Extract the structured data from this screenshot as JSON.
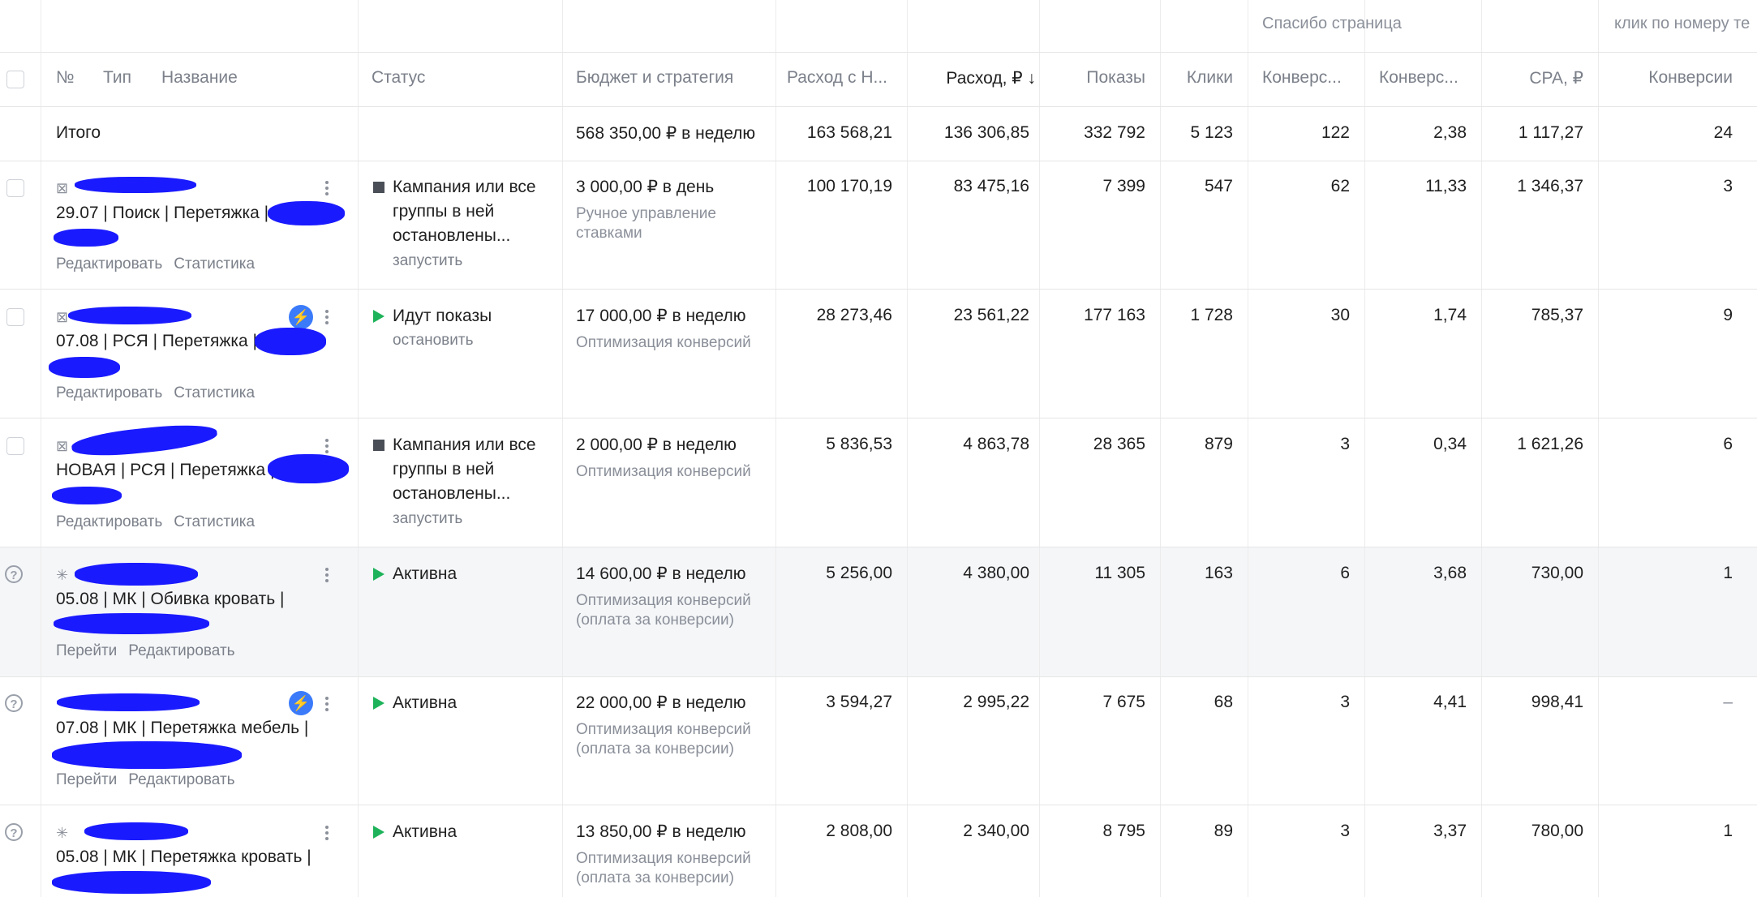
{
  "group_headers": {
    "thanks_page": "Спасибо страница",
    "phone_click": "клик по номеру те"
  },
  "columns": {
    "no": "№",
    "type": "Тип",
    "name": "Название",
    "status": "Статус",
    "budget": "Бюджет и стратегия",
    "spend_vat": "Расход с Н...",
    "spend": "Расход, ₽ ↓",
    "impressions": "Показы",
    "clicks": "Клики",
    "conv1": "Конверс...",
    "conv2": "Конверс...",
    "cpa": "CPA, ₽",
    "conversions": "Конверсии"
  },
  "totals": {
    "label": "Итого",
    "budget": "568 350,00 ₽ в неделю",
    "spend_vat": "163 568,21",
    "spend": "136 306,85",
    "impressions": "332 792",
    "clicks": "5 123",
    "conv1": "122",
    "conv2": "2,38",
    "cpa": "1 117,27",
    "conversions": "24"
  },
  "rows": [
    {
      "name_line": "29.07 | Поиск | Перетяжка |",
      "links": [
        "Редактировать",
        "Статистика"
      ],
      "status": "Кампания или все группы в ней остановлены...",
      "status_link": "запустить",
      "status_icon": "stop-icon",
      "budget": "3 000,00 ₽ в день",
      "strategy": "Ручное управление ставками",
      "spend_vat": "100 170,19",
      "spend": "83 475,16",
      "impressions": "7 399",
      "clicks": "547",
      "conv1": "62",
      "conv2": "11,33",
      "cpa": "1 346,37",
      "conversions": "3"
    },
    {
      "name_line": "07.08 | РСЯ | Перетяжка |",
      "links": [
        "Редактировать",
        "Статистика"
      ],
      "status": "Идут показы",
      "status_link": "остановить",
      "status_icon": "play-icon",
      "budget": "17 000,00 ₽ в неделю",
      "strategy": "Оптимизация конверсий",
      "spend_vat": "28 273,46",
      "spend": "23 561,22",
      "impressions": "177 163",
      "clicks": "1 728",
      "conv1": "30",
      "conv2": "1,74",
      "cpa": "785,37",
      "conversions": "9"
    },
    {
      "name_line": "НОВАЯ | РСЯ | Перетяжка |",
      "links": [
        "Редактировать",
        "Статистика"
      ],
      "status": "Кампания или все группы в ней остановлены...",
      "status_link": "запустить",
      "status_icon": "stop-icon",
      "budget": "2 000,00 ₽ в неделю",
      "strategy": "Оптимизация конверсий",
      "spend_vat": "5 836,53",
      "spend": "4 863,78",
      "impressions": "28 365",
      "clicks": "879",
      "conv1": "3",
      "conv2": "0,34",
      "cpa": "1 621,26",
      "conversions": "6"
    },
    {
      "name_line": "05.08 | МК | Обивка кровать |",
      "links": [
        "Перейти",
        "Редактировать"
      ],
      "status": "Активна",
      "status_link": "",
      "status_icon": "play-icon",
      "budget": "14 600,00 ₽ в неделю",
      "strategy": "Оптимизация конверсий (оплата за конверсии)",
      "spend_vat": "5 256,00",
      "spend": "4 380,00",
      "impressions": "11 305",
      "clicks": "163",
      "conv1": "6",
      "conv2": "3,68",
      "cpa": "730,00",
      "conversions": "1"
    },
    {
      "name_line": "07.08 | МК | Перетяжка мебель |",
      "links": [
        "Перейти",
        "Редактировать"
      ],
      "status": "Активна",
      "status_link": "",
      "status_icon": "play-icon",
      "budget": "22 000,00 ₽ в неделю",
      "strategy": "Оптимизация конверсий (оплата за конверсии)",
      "spend_vat": "3 594,27",
      "spend": "2 995,22",
      "impressions": "7 675",
      "clicks": "68",
      "conv1": "3",
      "conv2": "4,41",
      "cpa": "998,41",
      "conversions": "–"
    },
    {
      "name_line": "05.08 | МК | Перетяжка кровать |",
      "links": [
        "Перейти",
        "Редактировать"
      ],
      "status": "Активна",
      "status_link": "",
      "status_icon": "play-icon",
      "budget": "13 850,00 ₽ в неделю",
      "strategy": "Оптимизация конверсий (оплата за конверсии)",
      "spend_vat": "2 808,00",
      "spend": "2 340,00",
      "impressions": "8 795",
      "clicks": "89",
      "conv1": "3",
      "conv2": "3,37",
      "cpa": "780,00",
      "conversions": "1"
    }
  ]
}
